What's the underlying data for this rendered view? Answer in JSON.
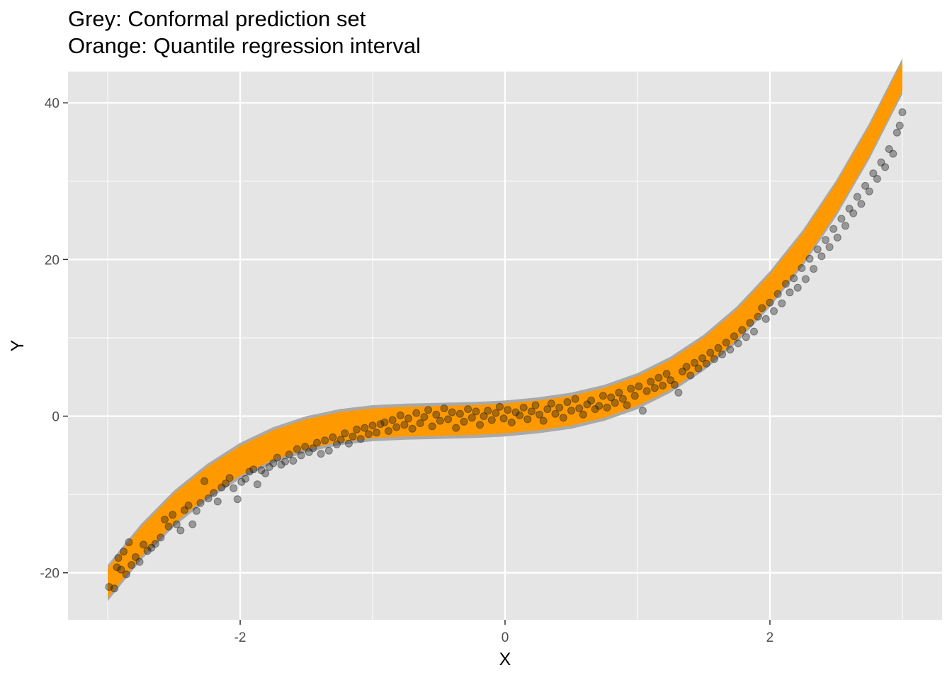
{
  "chart_data": {
    "type": "scatter",
    "title": "Grey: Conformal prediction set",
    "subtitle": "Orange: Quantile regression interval",
    "xlabel": "X",
    "ylabel": "Y",
    "xlim": [
      -3.3,
      3.3
    ],
    "ylim": [
      -26,
      44
    ],
    "x_ticks": [
      -2,
      0,
      2
    ],
    "x_tick_labels": [
      "-2",
      "0",
      "2"
    ],
    "y_ticks": [
      -20,
      0,
      20,
      40
    ],
    "y_tick_labels": [
      "-20",
      "0",
      "20",
      "40"
    ],
    "grid": true,
    "colors": {
      "panel_background": "#e5e5e5",
      "grid": "#ffffff",
      "conformal_band": "#a9a9a9",
      "quantile_band": "#ff9900",
      "points": "#1a1a1a"
    },
    "conformal_band": {
      "x": [
        -3.0,
        -2.75,
        -2.5,
        -2.25,
        -2.0,
        -1.75,
        -1.5,
        -1.25,
        -1.0,
        -0.75,
        -0.5,
        -0.25,
        0.0,
        0.25,
        0.5,
        0.75,
        1.0,
        1.25,
        1.5,
        1.75,
        2.0,
        2.25,
        2.5,
        2.75,
        3.0
      ],
      "lower": [
        -23.6,
        -18.4,
        -14.1,
        -10.7,
        -8.0,
        -6.0,
        -4.6,
        -3.7,
        -3.2,
        -3.0,
        -2.9,
        -2.8,
        -2.6,
        -2.2,
        -1.6,
        -0.6,
        0.9,
        3.0,
        5.8,
        9.4,
        13.9,
        19.2,
        25.5,
        32.8,
        41.1
      ],
      "upper": [
        -19.0,
        -13.8,
        -9.5,
        -6.1,
        -3.4,
        -1.4,
        0.0,
        0.9,
        1.4,
        1.6,
        1.7,
        1.8,
        2.0,
        2.4,
        3.0,
        4.0,
        5.5,
        7.6,
        10.4,
        14.0,
        18.5,
        23.8,
        30.1,
        37.4,
        45.7
      ]
    },
    "quantile_band": {
      "x": [
        -3.0,
        -2.75,
        -2.5,
        -2.25,
        -2.0,
        -1.75,
        -1.5,
        -1.25,
        -1.0,
        -0.75,
        -0.5,
        -0.25,
        0.0,
        0.25,
        0.5,
        0.75,
        1.0,
        1.25,
        1.5,
        1.75,
        2.0,
        2.25,
        2.5,
        2.75,
        3.0
      ],
      "lower": [
        -23.2,
        -18.0,
        -13.7,
        -10.3,
        -7.6,
        -5.6,
        -4.2,
        -3.3,
        -2.8,
        -2.6,
        -2.5,
        -2.4,
        -2.2,
        -1.8,
        -1.2,
        -0.2,
        1.3,
        3.4,
        6.2,
        9.8,
        14.3,
        19.6,
        25.9,
        33.2,
        41.5
      ],
      "upper": [
        -19.4,
        -14.2,
        -9.9,
        -6.5,
        -3.8,
        -1.8,
        -0.4,
        0.5,
        1.0,
        1.2,
        1.3,
        1.4,
        1.6,
        2.0,
        2.6,
        3.6,
        5.1,
        7.2,
        10.0,
        13.6,
        18.1,
        23.4,
        29.7,
        37.0,
        45.3
      ]
    },
    "points": [
      [
        -2.99,
        -21.8
      ],
      [
        -2.95,
        -22.0
      ],
      [
        -2.93,
        -19.3
      ],
      [
        -2.92,
        -18.1
      ],
      [
        -2.9,
        -19.6
      ],
      [
        -2.88,
        -17.3
      ],
      [
        -2.86,
        -20.2
      ],
      [
        -2.84,
        -16.1
      ],
      [
        -2.82,
        -19.0
      ],
      [
        -2.79,
        -18.0
      ],
      [
        -2.76,
        -18.6
      ],
      [
        -2.73,
        -16.4
      ],
      [
        -2.7,
        -17.2
      ],
      [
        -2.67,
        -16.8
      ],
      [
        -2.64,
        -16.3
      ],
      [
        -2.6,
        -15.5
      ],
      [
        -2.57,
        -13.2
      ],
      [
        -2.54,
        -14.1
      ],
      [
        -2.51,
        -12.6
      ],
      [
        -2.48,
        -13.8
      ],
      [
        -2.45,
        -14.6
      ],
      [
        -2.42,
        -12.0
      ],
      [
        -2.39,
        -11.4
      ],
      [
        -2.36,
        -13.8
      ],
      [
        -2.33,
        -12.1
      ],
      [
        -2.3,
        -11.1
      ],
      [
        -2.27,
        -8.3
      ],
      [
        -2.24,
        -10.5
      ],
      [
        -2.2,
        -9.8
      ],
      [
        -2.17,
        -10.9
      ],
      [
        -2.14,
        -9.1
      ],
      [
        -2.11,
        -8.6
      ],
      [
        -2.08,
        -7.9
      ],
      [
        -2.05,
        -9.2
      ],
      [
        -2.02,
        -10.6
      ],
      [
        -1.99,
        -8.4
      ],
      [
        -1.96,
        -8.0
      ],
      [
        -1.93,
        -7.1
      ],
      [
        -1.9,
        -6.8
      ],
      [
        -1.87,
        -8.7
      ],
      [
        -1.84,
        -6.9
      ],
      [
        -1.81,
        -7.3
      ],
      [
        -1.78,
        -6.5
      ],
      [
        -1.75,
        -6.0
      ],
      [
        -1.72,
        -5.3
      ],
      [
        -1.69,
        -6.2
      ],
      [
        -1.66,
        -5.8
      ],
      [
        -1.63,
        -4.9
      ],
      [
        -1.6,
        -5.7
      ],
      [
        -1.57,
        -4.2
      ],
      [
        -1.54,
        -5.0
      ],
      [
        -1.51,
        -3.9
      ],
      [
        -1.48,
        -4.6
      ],
      [
        -1.45,
        -4.1
      ],
      [
        -1.42,
        -3.4
      ],
      [
        -1.39,
        -4.8
      ],
      [
        -1.36,
        -3.1
      ],
      [
        -1.33,
        -4.4
      ],
      [
        -1.3,
        -2.7
      ],
      [
        -1.27,
        -3.6
      ],
      [
        -1.24,
        -3.0
      ],
      [
        -1.21,
        -2.2
      ],
      [
        -1.18,
        -3.5
      ],
      [
        -1.15,
        -2.6
      ],
      [
        -1.12,
        -1.7
      ],
      [
        -1.09,
        -2.9
      ],
      [
        -1.06,
        -1.5
      ],
      [
        -1.03,
        -2.3
      ],
      [
        -1.0,
        -1.2
      ],
      [
        -0.97,
        -2.1
      ],
      [
        -0.94,
        -1.0
      ],
      [
        -0.91,
        -0.8
      ],
      [
        -0.88,
        -1.9
      ],
      [
        -0.85,
        -0.5
      ],
      [
        -0.82,
        -1.4
      ],
      [
        -0.79,
        0.1
      ],
      [
        -0.76,
        -1.1
      ],
      [
        -0.73,
        -0.3
      ],
      [
        -0.7,
        -1.6
      ],
      [
        -0.67,
        0.4
      ],
      [
        -0.64,
        -0.9
      ],
      [
        -0.61,
        -0.1
      ],
      [
        -0.58,
        0.8
      ],
      [
        -0.55,
        -1.3
      ],
      [
        -0.52,
        0.2
      ],
      [
        -0.49,
        -0.6
      ],
      [
        -0.46,
        1.0
      ],
      [
        -0.43,
        -0.4
      ],
      [
        -0.4,
        0.5
      ],
      [
        -0.37,
        -1.5
      ],
      [
        -0.34,
        0.3
      ],
      [
        -0.31,
        -0.7
      ],
      [
        -0.28,
        0.9
      ],
      [
        -0.25,
        -0.2
      ],
      [
        -0.22,
        0.6
      ],
      [
        -0.19,
        -1.1
      ],
      [
        -0.16,
        0.0
      ],
      [
        -0.13,
        0.7
      ],
      [
        -0.1,
        -0.5
      ],
      [
        -0.07,
        0.4
      ],
      [
        -0.04,
        1.2
      ],
      [
        -0.01,
        -0.3
      ],
      [
        0.02,
        0.8
      ],
      [
        0.05,
        -0.8
      ],
      [
        0.08,
        0.5
      ],
      [
        0.11,
        0.1
      ],
      [
        0.14,
        1.1
      ],
      [
        0.17,
        -0.4
      ],
      [
        0.2,
        0.6
      ],
      [
        0.23,
        1.4
      ],
      [
        0.26,
        0.2
      ],
      [
        0.29,
        -0.6
      ],
      [
        0.32,
        0.9
      ],
      [
        0.35,
        1.6
      ],
      [
        0.38,
        0.3
      ],
      [
        0.41,
        1.1
      ],
      [
        0.44,
        -0.2
      ],
      [
        0.47,
        1.8
      ],
      [
        0.5,
        0.7
      ],
      [
        0.53,
        2.2
      ],
      [
        0.56,
        1.0
      ],
      [
        0.59,
        0.2
      ],
      [
        0.62,
        1.5
      ],
      [
        0.65,
        2.0
      ],
      [
        0.68,
        0.9
      ],
      [
        0.71,
        1.3
      ],
      [
        0.74,
        2.6
      ],
      [
        0.77,
        1.1
      ],
      [
        0.8,
        2.4
      ],
      [
        0.83,
        1.7
      ],
      [
        0.86,
        3.0
      ],
      [
        0.89,
        2.2
      ],
      [
        0.92,
        1.4
      ],
      [
        0.95,
        3.5
      ],
      [
        0.98,
        2.6
      ],
      [
        1.01,
        3.8
      ],
      [
        1.04,
        0.7
      ],
      [
        1.07,
        3.2
      ],
      [
        1.1,
        4.4
      ],
      [
        1.13,
        3.6
      ],
      [
        1.16,
        4.9
      ],
      [
        1.19,
        3.9
      ],
      [
        1.22,
        5.4
      ],
      [
        1.25,
        4.6
      ],
      [
        1.28,
        4.0
      ],
      [
        1.31,
        3.0
      ],
      [
        1.34,
        5.7
      ],
      [
        1.37,
        6.3
      ],
      [
        1.4,
        5.2
      ],
      [
        1.43,
        6.8
      ],
      [
        1.46,
        6.1
      ],
      [
        1.49,
        7.4
      ],
      [
        1.52,
        6.7
      ],
      [
        1.55,
        8.1
      ],
      [
        1.58,
        7.3
      ],
      [
        1.61,
        8.7
      ],
      [
        1.64,
        7.9
      ],
      [
        1.67,
        9.4
      ],
      [
        1.7,
        8.5
      ],
      [
        1.73,
        10.2
      ],
      [
        1.76,
        9.3
      ],
      [
        1.79,
        11.0
      ],
      [
        1.82,
        10.1
      ],
      [
        1.85,
        11.9
      ],
      [
        1.88,
        10.8
      ],
      [
        1.91,
        12.7
      ],
      [
        1.94,
        13.8
      ],
      [
        1.97,
        12.4
      ],
      [
        2.0,
        14.5
      ],
      [
        2.03,
        13.4
      ],
      [
        2.06,
        15.6
      ],
      [
        2.09,
        14.4
      ],
      [
        2.12,
        16.9
      ],
      [
        2.15,
        15.8
      ],
      [
        2.18,
        17.6
      ],
      [
        2.21,
        16.4
      ],
      [
        2.24,
        18.9
      ],
      [
        2.27,
        17.5
      ],
      [
        2.3,
        20.1
      ],
      [
        2.33,
        18.8
      ],
      [
        2.36,
        21.3
      ],
      [
        2.39,
        20.4
      ],
      [
        2.42,
        22.5
      ],
      [
        2.45,
        21.6
      ],
      [
        2.48,
        23.9
      ],
      [
        2.51,
        22.8
      ],
      [
        2.54,
        25.2
      ],
      [
        2.57,
        24.3
      ],
      [
        2.6,
        26.5
      ],
      [
        2.63,
        25.9
      ],
      [
        2.66,
        28.0
      ],
      [
        2.69,
        27.1
      ],
      [
        2.72,
        29.4
      ],
      [
        2.75,
        28.7
      ],
      [
        2.78,
        31.0
      ],
      [
        2.81,
        30.3
      ],
      [
        2.84,
        32.4
      ],
      [
        2.87,
        31.8
      ],
      [
        2.9,
        34.1
      ],
      [
        2.93,
        33.5
      ],
      [
        2.96,
        36.2
      ],
      [
        2.98,
        37.1
      ],
      [
        3.0,
        38.8
      ]
    ]
  }
}
